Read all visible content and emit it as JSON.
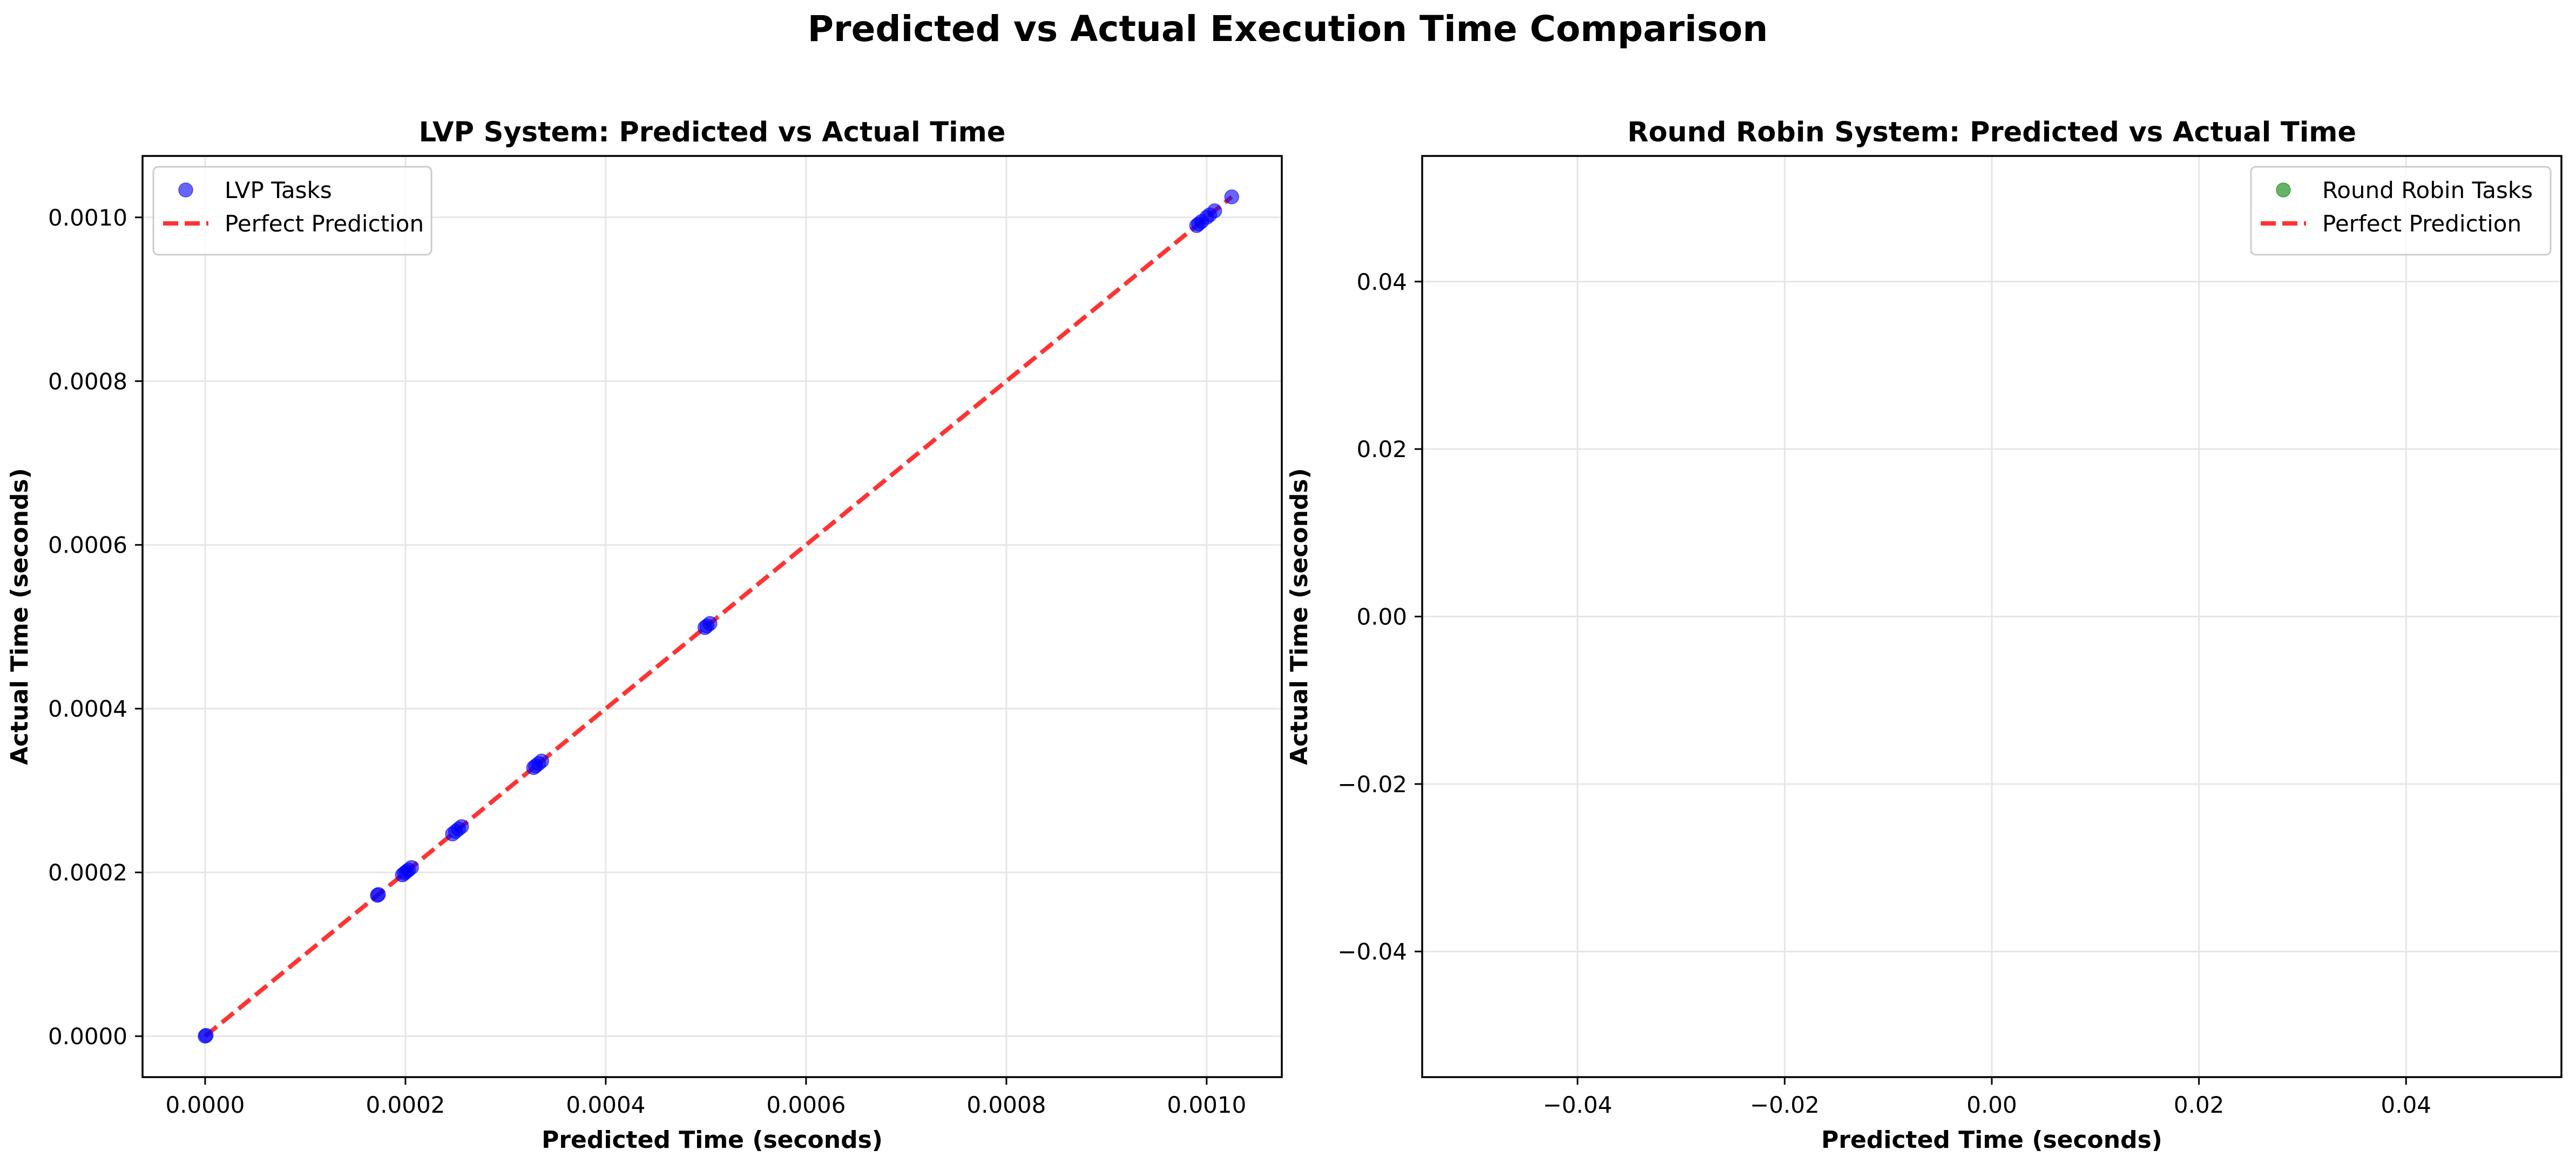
{
  "figure": {
    "title": "Predicted vs Actual Execution Time Comparison"
  },
  "chart_data": [
    {
      "type": "scatter",
      "title": "LVP System: Predicted vs Actual Time",
      "xlabel": "Predicted Time (seconds)",
      "ylabel": "Actual Time (seconds)",
      "xlim": [
        -6.25e-05,
        0.001075
      ],
      "ylim": [
        -5e-05,
        0.001075
      ],
      "xticks": [
        0,
        0.0002,
        0.0004,
        0.0006,
        0.0008,
        0.001
      ],
      "xtick_labels": [
        "0.0000",
        "0.0002",
        "0.0004",
        "0.0006",
        "0.0008",
        "0.0010"
      ],
      "yticks": [
        0,
        0.0002,
        0.0004,
        0.0006,
        0.0008,
        0.001
      ],
      "ytick_labels": [
        "0.0000",
        "0.0002",
        "0.0004",
        "0.0006",
        "0.0008",
        "0.0010"
      ],
      "grid": true,
      "legend_position": "upper left",
      "series": [
        {
          "name": "LVP Tasks",
          "kind": "scatter",
          "color": "#0000ff",
          "x": [
            0.0,
            1e-06,
            0.000172,
            0.000173,
            0.000197,
            0.000199,
            0.000201,
            0.000203,
            0.000206,
            0.000247,
            0.00025,
            0.000253,
            0.000256,
            0.000328,
            0.00033,
            0.000333,
            0.000336,
            0.000499,
            0.000501,
            0.000504,
            0.00099,
            0.000992,
            0.000995,
            0.001,
            0.001003,
            0.001008,
            0.001025
          ],
          "y": [
            0.0,
            1e-06,
            0.000172,
            0.000173,
            0.000197,
            0.000199,
            0.000201,
            0.000203,
            0.000206,
            0.000247,
            0.00025,
            0.000253,
            0.000256,
            0.000328,
            0.00033,
            0.000333,
            0.000336,
            0.000499,
            0.000501,
            0.000504,
            0.00099,
            0.000992,
            0.000995,
            0.001,
            0.001003,
            0.001008,
            0.001025
          ]
        },
        {
          "name": "Perfect Prediction",
          "kind": "line",
          "style": "dashed",
          "color": "#ff0000",
          "x": [
            0.0,
            0.001025
          ],
          "y": [
            0.0,
            0.001025
          ]
        }
      ]
    },
    {
      "type": "scatter",
      "title": "Round Robin System: Predicted vs Actual Time",
      "xlabel": "Predicted Time (seconds)",
      "ylabel": "Actual Time (seconds)",
      "xlim": [
        -0.055,
        0.055
      ],
      "ylim": [
        -0.055,
        0.055
      ],
      "xticks": [
        -0.04,
        -0.02,
        0.0,
        0.02,
        0.04
      ],
      "xtick_labels": [
        "−0.04",
        "−0.02",
        "0.00",
        "0.02",
        "0.04"
      ],
      "yticks": [
        -0.04,
        -0.02,
        0.0,
        0.02,
        0.04
      ],
      "ytick_labels": [
        "−0.04",
        "−0.02",
        "0.00",
        "0.02",
        "0.04"
      ],
      "grid": true,
      "legend_position": "upper right",
      "series": [
        {
          "name": "Round Robin Tasks",
          "kind": "scatter",
          "color": "#008000",
          "x": [],
          "y": []
        },
        {
          "name": "Perfect Prediction",
          "kind": "line",
          "style": "dashed",
          "color": "#ff0000",
          "x": [],
          "y": []
        }
      ]
    }
  ]
}
